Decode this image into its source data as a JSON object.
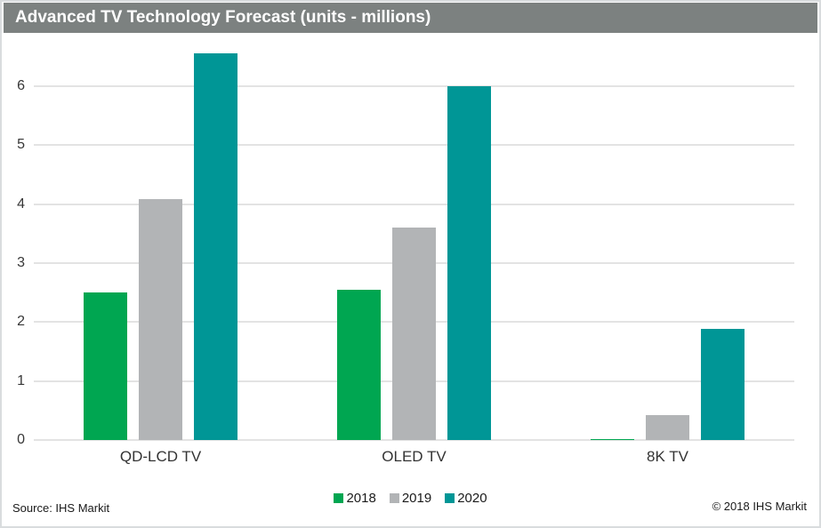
{
  "header": {
    "title": "Advanced TV Technology Forecast (units - millions)",
    "background_color": "#7c8180"
  },
  "chart_data": {
    "type": "bar",
    "title": "Advanced TV Technology Forecast (units - millions)",
    "categories": [
      "QD-LCD TV",
      "OLED TV",
      "8K TV"
    ],
    "series": [
      {
        "name": "2018",
        "color": "#00A651",
        "values": [
          2.5,
          2.55,
          0.01
        ]
      },
      {
        "name": "2019",
        "color": "#B2B4B6",
        "values": [
          4.08,
          3.6,
          0.42
        ]
      },
      {
        "name": "2020",
        "color": "#009696",
        "values": [
          6.55,
          6.0,
          1.88
        ]
      }
    ],
    "xlabel": "",
    "ylabel": "",
    "yticks": [
      0,
      1,
      2,
      3,
      4,
      5,
      6
    ],
    "ylim": [
      0,
      6.78
    ],
    "grid": true,
    "legend_position": "bottom",
    "gridline_color": "#e3e3e3"
  },
  "footer": {
    "source": "Source: IHS Markit",
    "copyright": "© 2018 IHS Markit"
  }
}
